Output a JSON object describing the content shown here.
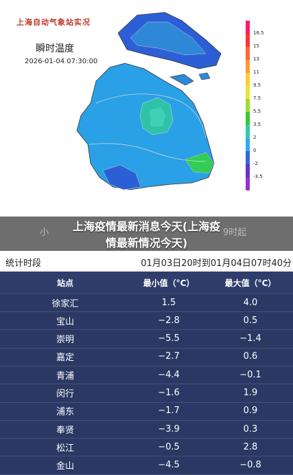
{
  "map": {
    "title": "上海自动气象站实况",
    "subtitle": "瞬时温度",
    "timestamp": "2026-01-04 07:30:00",
    "legend": [
      "16.5",
      "15",
      "13",
      "11",
      "9.5",
      "7.5",
      "5.5",
      "3.5",
      "2",
      "0",
      "-2",
      "-3.5"
    ],
    "legend_colors": [
      "#ff1a66",
      "#ff3333",
      "#ff6633",
      "#ff9933",
      "#ffcc33",
      "#e6e633",
      "#99dd33",
      "#33cc33",
      "#33ccaa",
      "#33aaee",
      "#3366dd",
      "#6633cc",
      "#9933cc"
    ]
  },
  "caption": {
    "line1": "上海疫情最新消息今天(上海疫",
    "line2": "情最新情况今天)",
    "ghost_left": "小",
    "ghost_right": "9时起"
  },
  "stats": {
    "label": "统计时段",
    "range": "01月03日20时到01月04日07时40分"
  },
  "table": {
    "headers": [
      "站点",
      "最小值（°C）",
      "最大值（°C）"
    ],
    "rows": [
      [
        "徐家汇",
        "1.5",
        "4.0"
      ],
      [
        "宝山",
        "−2.8",
        "0.5"
      ],
      [
        "崇明",
        "−5.5",
        "−1.4"
      ],
      [
        "嘉定",
        "−2.7",
        "0.6"
      ],
      [
        "青浦",
        "−4.4",
        "−0.1"
      ],
      [
        "闵行",
        "−1.6",
        "1.9"
      ],
      [
        "浦东",
        "−1.7",
        "0.9"
      ],
      [
        "奉贤",
        "−3.9",
        "0.3"
      ],
      [
        "松江",
        "−0.5",
        "2.8"
      ],
      [
        "金山",
        "−4.5",
        "−0.8"
      ]
    ]
  }
}
